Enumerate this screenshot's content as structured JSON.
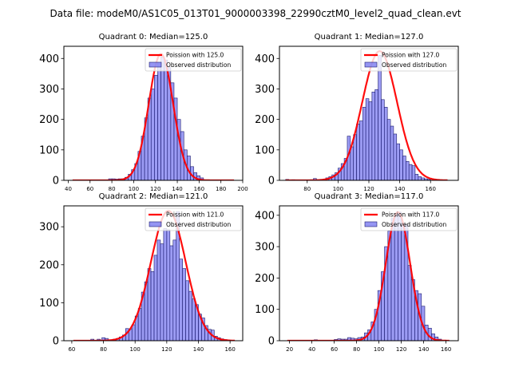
{
  "figure": {
    "suptitle": "Data file: modeM0/AS1C05_013T01_9000003398_22990cztM0_level2_quad_clean.evt"
  },
  "colors": {
    "bar_fill": "#7b7bf0",
    "bar_edge": "#1a1a6e",
    "poisson_line": "#ff0000"
  },
  "chart_data": [
    {
      "type": "bar",
      "title": "Quadrant 0: Median=125.0",
      "xlim": [
        36,
        200
      ],
      "ylim": [
        0,
        440
      ],
      "xticks": [
        40,
        60,
        80,
        100,
        120,
        140,
        160,
        180,
        200
      ],
      "yticks": [
        0,
        100,
        200,
        300,
        400
      ],
      "legend": [
        "Poission with 125.0",
        "Observed distribution"
      ],
      "legend_loc": "top-right",
      "bin_width": 3,
      "bins_start": [
        77,
        80,
        83,
        86,
        89,
        92,
        95,
        98,
        101,
        104,
        107,
        110,
        113,
        116,
        119,
        122,
        125,
        128,
        131,
        134,
        137,
        140,
        143,
        146,
        149,
        152,
        155,
        158,
        161
      ],
      "counts": [
        5,
        5,
        4,
        5,
        5,
        10,
        20,
        35,
        55,
        95,
        145,
        205,
        270,
        300,
        345,
        385,
        405,
        395,
        370,
        320,
        270,
        200,
        160,
        100,
        80,
        45,
        25,
        15,
        8
      ],
      "poisson": {
        "mean": 125.0,
        "x_range": [
          44,
          192
        ],
        "peak": 415
      }
    },
    {
      "type": "bar",
      "title": "Quadrant 1: Median=127.0",
      "xlim": [
        62,
        178
      ],
      "ylim": [
        0,
        440
      ],
      "xticks": [
        80,
        100,
        120,
        140,
        160
      ],
      "yticks": [
        0,
        100,
        200,
        300,
        400
      ],
      "legend": [
        "Poission with 127.0",
        "Observed distribution"
      ],
      "legend_loc": "top-right",
      "bin_width": 2,
      "bins_start": [
        66,
        70,
        84,
        92,
        94,
        96,
        98,
        100,
        102,
        104,
        106,
        108,
        110,
        112,
        114,
        116,
        118,
        120,
        122,
        124,
        126,
        128,
        130,
        132,
        134,
        136,
        138,
        140,
        142,
        144,
        146,
        148,
        150,
        152,
        154,
        156,
        158
      ],
      "counts": [
        3,
        2,
        6,
        8,
        12,
        18,
        25,
        40,
        55,
        72,
        145,
        110,
        150,
        185,
        195,
        240,
        268,
        258,
        290,
        298,
        410,
        265,
        240,
        200,
        178,
        152,
        120,
        100,
        80,
        62,
        52,
        48,
        20,
        12,
        8,
        5,
        3
      ],
      "poisson": {
        "mean": 127.0,
        "x_range": [
          66,
          171
        ],
        "peak": 424
      }
    },
    {
      "type": "bar",
      "title": "Quadrant 2: Median=121.0",
      "xlim": [
        55,
        168
      ],
      "ylim": [
        0,
        355
      ],
      "xticks": [
        60,
        80,
        100,
        120,
        140,
        160
      ],
      "yticks": [
        0,
        100,
        200,
        300
      ],
      "legend": [
        "Poission with 121.0",
        "Observed distribution"
      ],
      "legend_loc": "top-right",
      "bin_width": 2,
      "bins_start": [
        72,
        76,
        79,
        81,
        86,
        88,
        90,
        92,
        94,
        96,
        98,
        100,
        102,
        104,
        106,
        108,
        110,
        112,
        114,
        116,
        118,
        120,
        122,
        124,
        126,
        128,
        130,
        132,
        134,
        136,
        138,
        140,
        142,
        144,
        146,
        148,
        150,
        152,
        154,
        156
      ],
      "counts": [
        4,
        4,
        8,
        6,
        4,
        6,
        10,
        15,
        32,
        30,
        42,
        65,
        85,
        128,
        155,
        190,
        182,
        225,
        265,
        255,
        295,
        292,
        250,
        265,
        340,
        215,
        190,
        158,
        130,
        110,
        95,
        70,
        60,
        40,
        30,
        28,
        12,
        8,
        5,
        3
      ],
      "poisson": {
        "mean": 121.0,
        "x_range": [
          61,
          163
        ],
        "peak": 342
      }
    },
    {
      "type": "bar",
      "title": "Quadrant 3: Median=117.0",
      "xlim": [
        11,
        171
      ],
      "ylim": [
        0,
        430
      ],
      "xticks": [
        20,
        40,
        60,
        80,
        100,
        120,
        140,
        160
      ],
      "yticks": [
        0,
        100,
        200,
        300,
        400
      ],
      "legend": [
        "Poission with 117.0",
        "Observed distribution"
      ],
      "legend_loc": "top-right",
      "bin_width": 3,
      "bins_start": [
        42,
        60,
        63,
        66,
        69,
        72,
        75,
        78,
        81,
        84,
        87,
        90,
        93,
        96,
        99,
        102,
        105,
        108,
        111,
        114,
        117,
        120,
        123,
        126,
        129,
        132,
        135,
        138,
        141,
        144,
        147,
        150,
        153
      ],
      "counts": [
        3,
        4,
        6,
        5,
        5,
        10,
        8,
        6,
        10,
        12,
        25,
        35,
        60,
        100,
        160,
        220,
        300,
        350,
        390,
        405,
        410,
        375,
        370,
        240,
        195,
        160,
        150,
        110,
        50,
        40,
        22,
        12,
        5
      ],
      "poisson": {
        "mean": 117.0,
        "x_range": [
          18,
          163
        ],
        "peak": 410
      }
    }
  ]
}
